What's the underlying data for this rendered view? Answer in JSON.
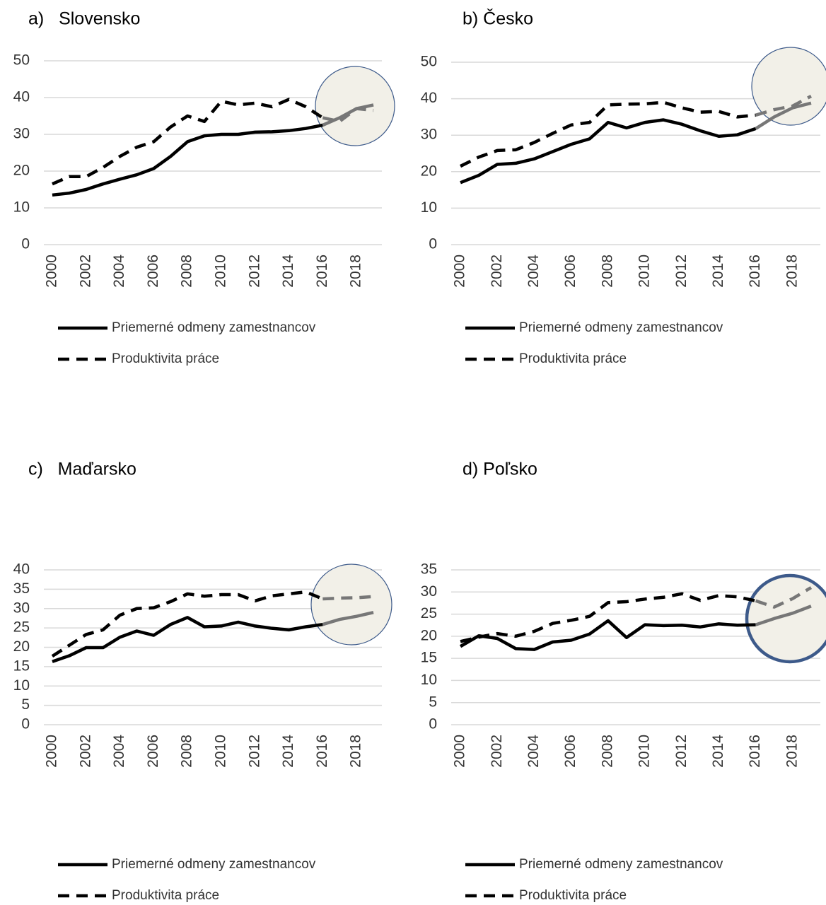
{
  "chart_data": [
    {
      "type": "line",
      "title": "a)   Slovensko",
      "categories": [
        "2000",
        null,
        "2002",
        null,
        "2004",
        null,
        "2006",
        null,
        "2008",
        null,
        "2010",
        null,
        "2012",
        null,
        "2014",
        null,
        "2016",
        null,
        "2018",
        null
      ],
      "series": [
        {
          "name": "Priemerné odmeny zamestnancov",
          "color": "#000000",
          "dash": false,
          "values": [
            13.5,
            14,
            15,
            16.5,
            17.8,
            19,
            20.7,
            24,
            28,
            29.6,
            30,
            30,
            30.6,
            30.7,
            31,
            31.6,
            32.5,
            34.5,
            37,
            38
          ]
        },
        {
          "name": "Produktivita práce",
          "color": "#000000",
          "dash": true,
          "values": [
            16.5,
            18.5,
            18.5,
            21,
            24,
            26.5,
            28,
            32,
            35,
            33.5,
            39,
            38,
            38.5,
            37.5,
            39.5,
            37.5,
            34.5,
            33.5,
            37,
            36.5
          ]
        }
      ],
      "ylim": [
        0,
        50
      ],
      "yticks": [
        0,
        10,
        20,
        30,
        40,
        50
      ],
      "grid": true,
      "legend": "bottom"
    },
    {
      "type": "line",
      "title": "b) Česko",
      "categories": [
        "2000",
        null,
        "2002",
        null,
        "2004",
        null,
        "2006",
        null,
        "2008",
        null,
        "2010",
        null,
        "2012",
        null,
        "2014",
        null,
        "2016",
        null,
        "2018",
        null
      ],
      "series": [
        {
          "name": "Priemerné odmeny zamestnancov",
          "color": "#000000",
          "dash": false,
          "values": [
            17,
            19,
            22,
            22.3,
            23.5,
            25.5,
            27.5,
            29,
            33.5,
            32,
            33.5,
            34.2,
            33,
            31.2,
            29.7,
            30.1,
            31.8,
            35,
            37.5,
            38.8
          ]
        },
        {
          "name": "Produktivita práce",
          "color": "#000000",
          "dash": true,
          "values": [
            21.5,
            24,
            25.8,
            26,
            28,
            30.5,
            32.8,
            33.5,
            38.3,
            38.5,
            38.6,
            39,
            37.5,
            36.3,
            36.5,
            35,
            35.5,
            37,
            38,
            40.7
          ]
        }
      ],
      "ylim": [
        0,
        50
      ],
      "yticks": [
        0,
        10,
        20,
        30,
        40,
        50
      ],
      "grid": true,
      "legend": "bottom"
    },
    {
      "type": "line",
      "title": "c)   Maďarsko",
      "categories": [
        "2000",
        null,
        "2002",
        null,
        "2004",
        null,
        "2006",
        null,
        "2008",
        null,
        "2010",
        null,
        "2012",
        null,
        "2014",
        null,
        "2016",
        null,
        "2018",
        null
      ],
      "series": [
        {
          "name": "Priemerné odmeny zamestnancov",
          "color": "#000000",
          "dash": false,
          "values": [
            16.3,
            17.8,
            19.9,
            19.9,
            22.6,
            24.2,
            23.1,
            25.9,
            27.7,
            25.3,
            25.5,
            26.5,
            25.5,
            24.9,
            24.5,
            25.3,
            25.9,
            27.2,
            28,
            29
          ]
        },
        {
          "name": "Produktivita práce",
          "color": "#000000",
          "dash": true,
          "values": [
            17.7,
            20.5,
            23.3,
            24.5,
            28.3,
            30,
            30.2,
            31.8,
            33.8,
            33.2,
            33.6,
            33.6,
            32,
            33.3,
            33.8,
            34.3,
            32.5,
            32.7,
            32.8,
            33.1
          ]
        }
      ],
      "ylim": [
        0,
        40
      ],
      "yticks": [
        0,
        5,
        10,
        15,
        20,
        25,
        30,
        35,
        40
      ],
      "grid": true,
      "legend": "bottom"
    },
    {
      "type": "line",
      "title": "d) Poľsko",
      "categories": [
        "2000",
        null,
        "2002",
        null,
        "2004",
        null,
        "2006",
        null,
        "2008",
        null,
        "2010",
        null,
        "2012",
        null,
        "2014",
        null,
        "2016",
        null,
        "2018",
        null
      ],
      "series": [
        {
          "name": "Priemerné odmeny zamestnancov",
          "color": "#000000",
          "dash": false,
          "values": [
            17.7,
            20.1,
            19.5,
            17.2,
            17,
            18.7,
            19.1,
            20.5,
            23.5,
            19.7,
            22.6,
            22.4,
            22.5,
            22.1,
            22.8,
            22.5,
            22.6,
            24,
            25.2,
            26.8
          ]
        },
        {
          "name": "Produktivita práce",
          "color": "#000000",
          "dash": true,
          "values": [
            18.8,
            19.8,
            20.6,
            20,
            21.1,
            22.9,
            23.6,
            24.5,
            27.6,
            27.8,
            28.4,
            28.8,
            29.6,
            28.1,
            29.2,
            28.9,
            28,
            26.6,
            28.5,
            31
          ]
        }
      ],
      "ylim": [
        0,
        35
      ],
      "yticks": [
        0,
        5,
        10,
        15,
        20,
        25,
        30,
        35
      ],
      "grid": true,
      "legend": "bottom"
    }
  ]
}
